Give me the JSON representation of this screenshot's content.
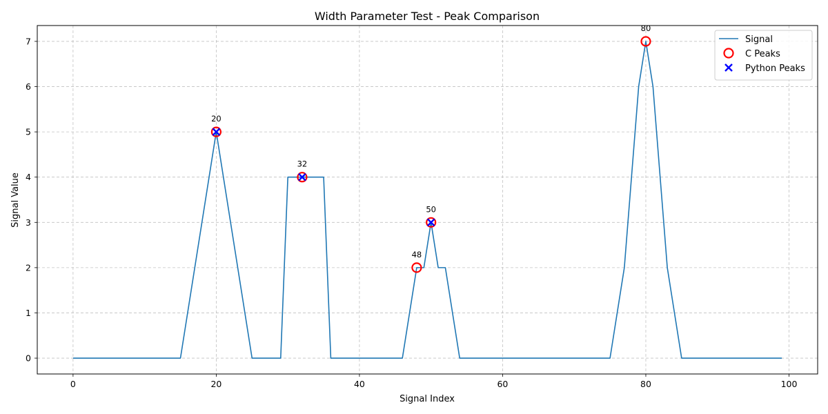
{
  "chart_data": {
    "type": "line",
    "title": "Width Parameter Test - Peak Comparison",
    "xlabel": "Signal Index",
    "ylabel": "Signal Value",
    "xlim": [
      -5,
      104
    ],
    "ylim": [
      -0.35,
      7.35
    ],
    "x_ticks": [
      0,
      20,
      40,
      60,
      80,
      100
    ],
    "y_ticks": [
      0,
      1,
      2,
      3,
      4,
      5,
      6,
      7
    ],
    "grid": true,
    "legend_position": "top-right",
    "series": [
      {
        "name": "Signal",
        "color": "#1f77b4",
        "points": [
          [
            0,
            0
          ],
          [
            15,
            0
          ],
          [
            20,
            5
          ],
          [
            25,
            0
          ],
          [
            29,
            0
          ],
          [
            30,
            4
          ],
          [
            35,
            4
          ],
          [
            36,
            0
          ],
          [
            46,
            0
          ],
          [
            48,
            2
          ],
          [
            49,
            2
          ],
          [
            50,
            3
          ],
          [
            51,
            2
          ],
          [
            52,
            2
          ],
          [
            54,
            0
          ],
          [
            75,
            0
          ],
          [
            77,
            2
          ],
          [
            79,
            6
          ],
          [
            80,
            7
          ],
          [
            81,
            6
          ],
          [
            83,
            2
          ],
          [
            85,
            0
          ],
          [
            99,
            0
          ]
        ]
      }
    ],
    "c_peaks": {
      "name": "C Peaks",
      "color": "#ff0000",
      "x": [
        20,
        32,
        48,
        50,
        80
      ],
      "y": [
        5,
        4,
        2,
        3,
        7
      ]
    },
    "python_peaks": {
      "name": "Python Peaks",
      "color": "#0000ff",
      "x": [
        20,
        32,
        50
      ],
      "y": [
        5,
        4,
        3
      ]
    },
    "annotations": [
      {
        "text": "20",
        "x": 20,
        "y": 5
      },
      {
        "text": "32",
        "x": 32,
        "y": 4
      },
      {
        "text": "48",
        "x": 48,
        "y": 2
      },
      {
        "text": "50",
        "x": 50,
        "y": 3
      },
      {
        "text": "80",
        "x": 80,
        "y": 7
      }
    ]
  }
}
